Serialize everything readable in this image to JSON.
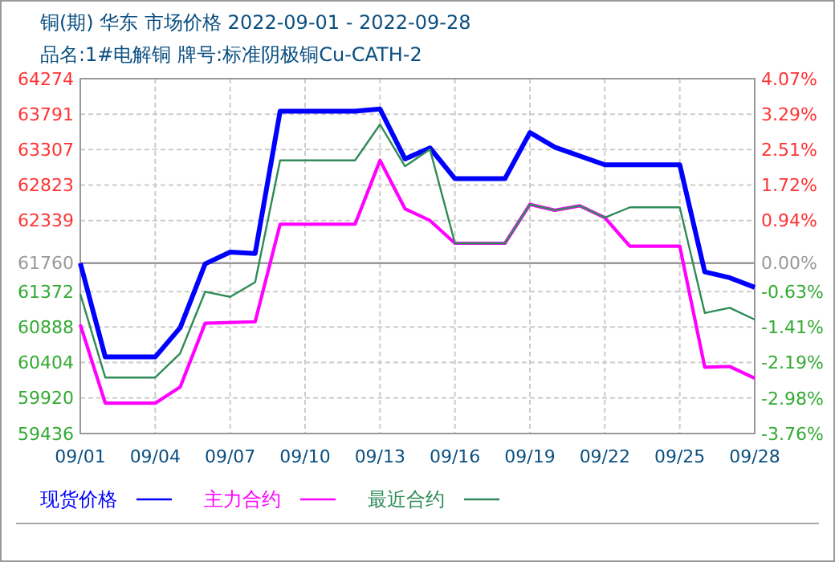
{
  "chart_data": {
    "type": "line",
    "title": "铜(期) 华东 市场价格 2022-09-01 - 2022-09-28",
    "subtitle": "品名:1#电解铜 牌号:标准阴极铜Cu-CATH-2",
    "series": [
      {
        "name": "现货价格",
        "color": "#0000ff",
        "x": [
          "2022-09-01",
          "2022-09-02",
          "2022-09-04",
          "2022-09-05",
          "2022-09-06",
          "2022-09-07",
          "2022-09-08",
          "2022-09-09",
          "2022-09-12",
          "2022-09-13",
          "2022-09-14",
          "2022-09-15",
          "2022-09-16",
          "2022-09-18",
          "2022-09-19",
          "2022-09-20",
          "2022-09-22",
          "2022-09-25",
          "2022-09-26",
          "2022-09-27",
          "2022-09-28"
        ],
        "values": [
          61760,
          60480,
          60480,
          60880,
          61750,
          61910,
          61890,
          63830,
          63830,
          63860,
          63180,
          63330,
          62910,
          62910,
          63540,
          63340,
          63100,
          63100,
          61640,
          61560,
          61430
        ]
      },
      {
        "name": "主力合约",
        "color": "#ff00ff",
        "x": [
          "2022-09-01",
          "2022-09-02",
          "2022-09-04",
          "2022-09-05",
          "2022-09-06",
          "2022-09-08",
          "2022-09-09",
          "2022-09-12",
          "2022-09-13",
          "2022-09-14",
          "2022-09-15",
          "2022-09-16",
          "2022-09-18",
          "2022-09-19",
          "2022-09-20",
          "2022-09-21",
          "2022-09-22",
          "2022-09-23",
          "2022-09-25",
          "2022-09-26",
          "2022-09-27",
          "2022-09-28"
        ],
        "values": [
          60920,
          59850,
          59850,
          60070,
          60940,
          60960,
          62290,
          62290,
          63160,
          62500,
          62340,
          62030,
          62030,
          62560,
          62480,
          62540,
          62380,
          61990,
          61990,
          60340,
          60350,
          60190
        ]
      },
      {
        "name": "最近合约",
        "color": "#2e8b57",
        "x": [
          "2022-09-01",
          "2022-09-02",
          "2022-09-04",
          "2022-09-05",
          "2022-09-06",
          "2022-09-07",
          "2022-09-08",
          "2022-09-09",
          "2022-09-12",
          "2022-09-13",
          "2022-09-14",
          "2022-09-15",
          "2022-09-16",
          "2022-09-18",
          "2022-09-19",
          "2022-09-20",
          "2022-09-21",
          "2022-09-22",
          "2022-09-23",
          "2022-09-25",
          "2022-09-26",
          "2022-09-27",
          "2022-09-28"
        ],
        "values": [
          61340,
          60200,
          60200,
          60530,
          61370,
          61300,
          61500,
          63160,
          63160,
          63650,
          63080,
          63310,
          62030,
          62030,
          62560,
          62480,
          62540,
          62380,
          62520,
          62520,
          61080,
          61150,
          60990
        ]
      }
    ],
    "xlim": [
      "2022-09-01",
      "2022-09-28"
    ],
    "xticks": [
      {
        "value": "2022-09-01",
        "label": "09/01"
      },
      {
        "value": "2022-09-04",
        "label": "09/04"
      },
      {
        "value": "2022-09-07",
        "label": "09/07"
      },
      {
        "value": "2022-09-10",
        "label": "09/10"
      },
      {
        "value": "2022-09-13",
        "label": "09/13"
      },
      {
        "value": "2022-09-16",
        "label": "09/16"
      },
      {
        "value": "2022-09-19",
        "label": "09/19"
      },
      {
        "value": "2022-09-22",
        "label": "09/22"
      },
      {
        "value": "2022-09-25",
        "label": "09/25"
      },
      {
        "value": "2022-09-28",
        "label": "09/28"
      }
    ],
    "ylim": [
      59436,
      64274
    ],
    "yticks": [
      59436,
      59920,
      60404,
      60888,
      61372,
      61760,
      62339,
      62823,
      63307,
      63791,
      64274
    ],
    "y2lim": [
      -3.76,
      4.07
    ],
    "y2ticks": [
      {
        "value": -3.76,
        "label": "-3.76%"
      },
      {
        "value": -2.98,
        "label": "-2.98%"
      },
      {
        "value": -2.19,
        "label": "-2.19%"
      },
      {
        "value": -1.41,
        "label": "-1.41%"
      },
      {
        "value": -0.63,
        "label": "-0.63%"
      },
      {
        "value": 0,
        "label": "0.00%"
      },
      {
        "value": 0.94,
        "label": "0.94%"
      },
      {
        "value": 1.72,
        "label": "1.72%"
      },
      {
        "value": 2.51,
        "label": "2.51%"
      },
      {
        "value": 3.29,
        "label": "3.29%"
      },
      {
        "value": 4.07,
        "label": "4.07%"
      }
    ],
    "ref_lines": [
      {
        "axis": "y",
        "value": 61760,
        "color": "#999999"
      }
    ],
    "grid": true,
    "legend": "bottom",
    "line_style": "solid"
  }
}
